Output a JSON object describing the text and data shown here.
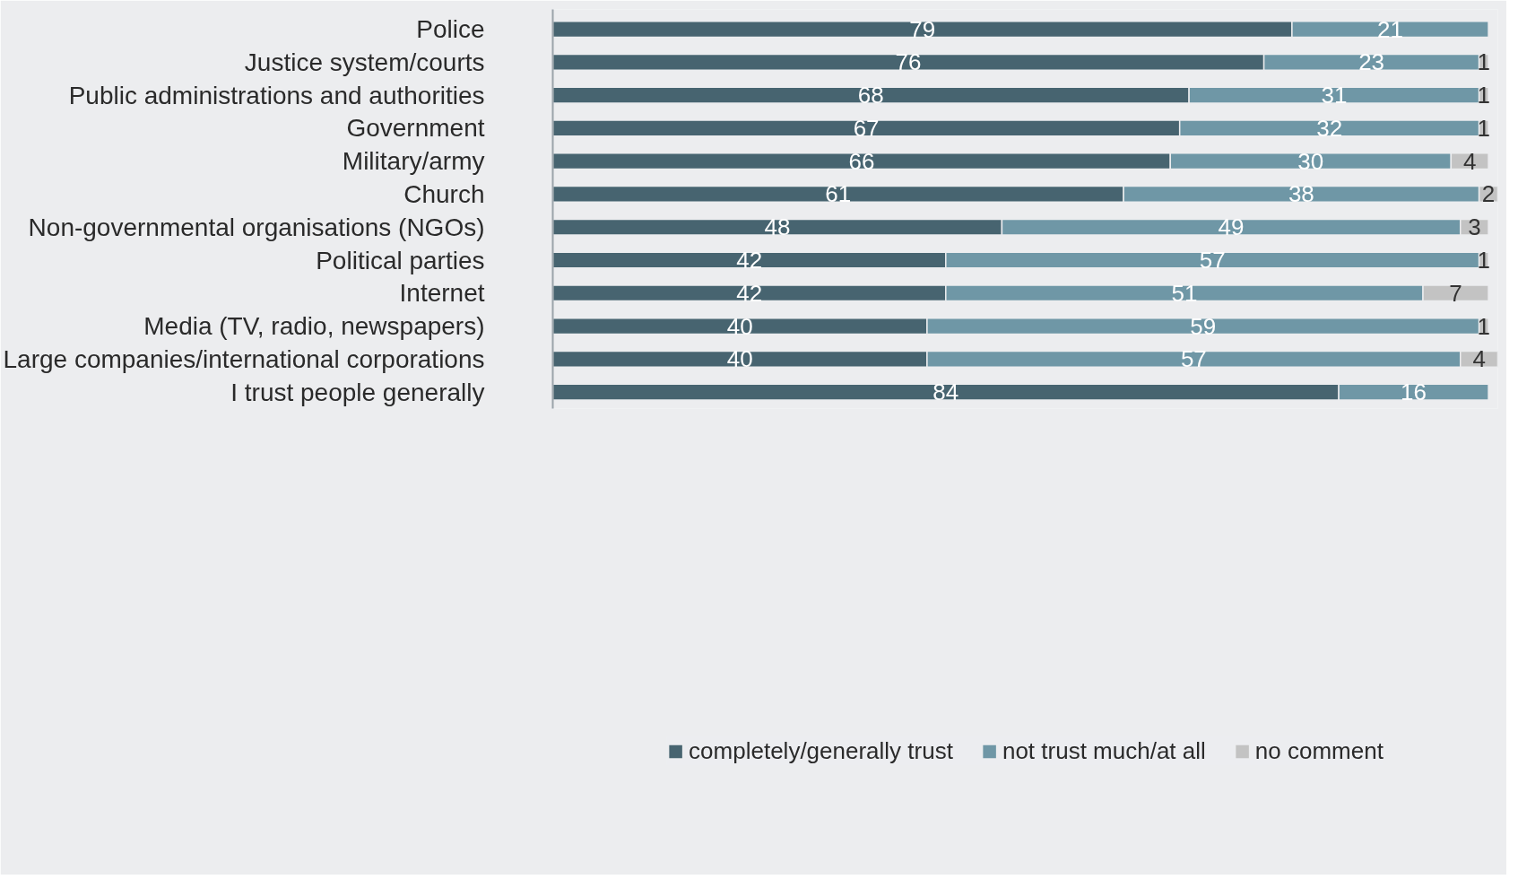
{
  "chart_data": {
    "type": "bar",
    "orientation": "horizontal",
    "stacked": true,
    "data_labels": true,
    "legend": "bottom",
    "grid": false,
    "tick_labels": "y",
    "xlim": [
      0,
      101
    ],
    "categories": [
      "Police",
      "Justice system/courts",
      "Public administrations and authorities",
      "Government",
      "Military/army",
      "Church",
      "Non-governmental organisations (NGOs)",
      "Political parties",
      "Internet",
      "Media (TV, radio, newspapers)",
      "Large companies/international corporations",
      "I trust people generally"
    ],
    "series": [
      {
        "name": "completely/generally trust",
        "color": "#476470",
        "values": [
          79,
          76,
          68,
          67,
          66,
          61,
          48,
          42,
          42,
          40,
          40,
          84
        ]
      },
      {
        "name": "not trust much/at all",
        "color": "#6f97a6",
        "values": [
          21,
          23,
          31,
          32,
          30,
          38,
          49,
          57,
          51,
          59,
          57,
          16
        ]
      },
      {
        "name": "no comment",
        "color": "#c3c3c3",
        "values": [
          null,
          1,
          1,
          1,
          4,
          2,
          3,
          1,
          7,
          1,
          4,
          null
        ]
      }
    ]
  }
}
